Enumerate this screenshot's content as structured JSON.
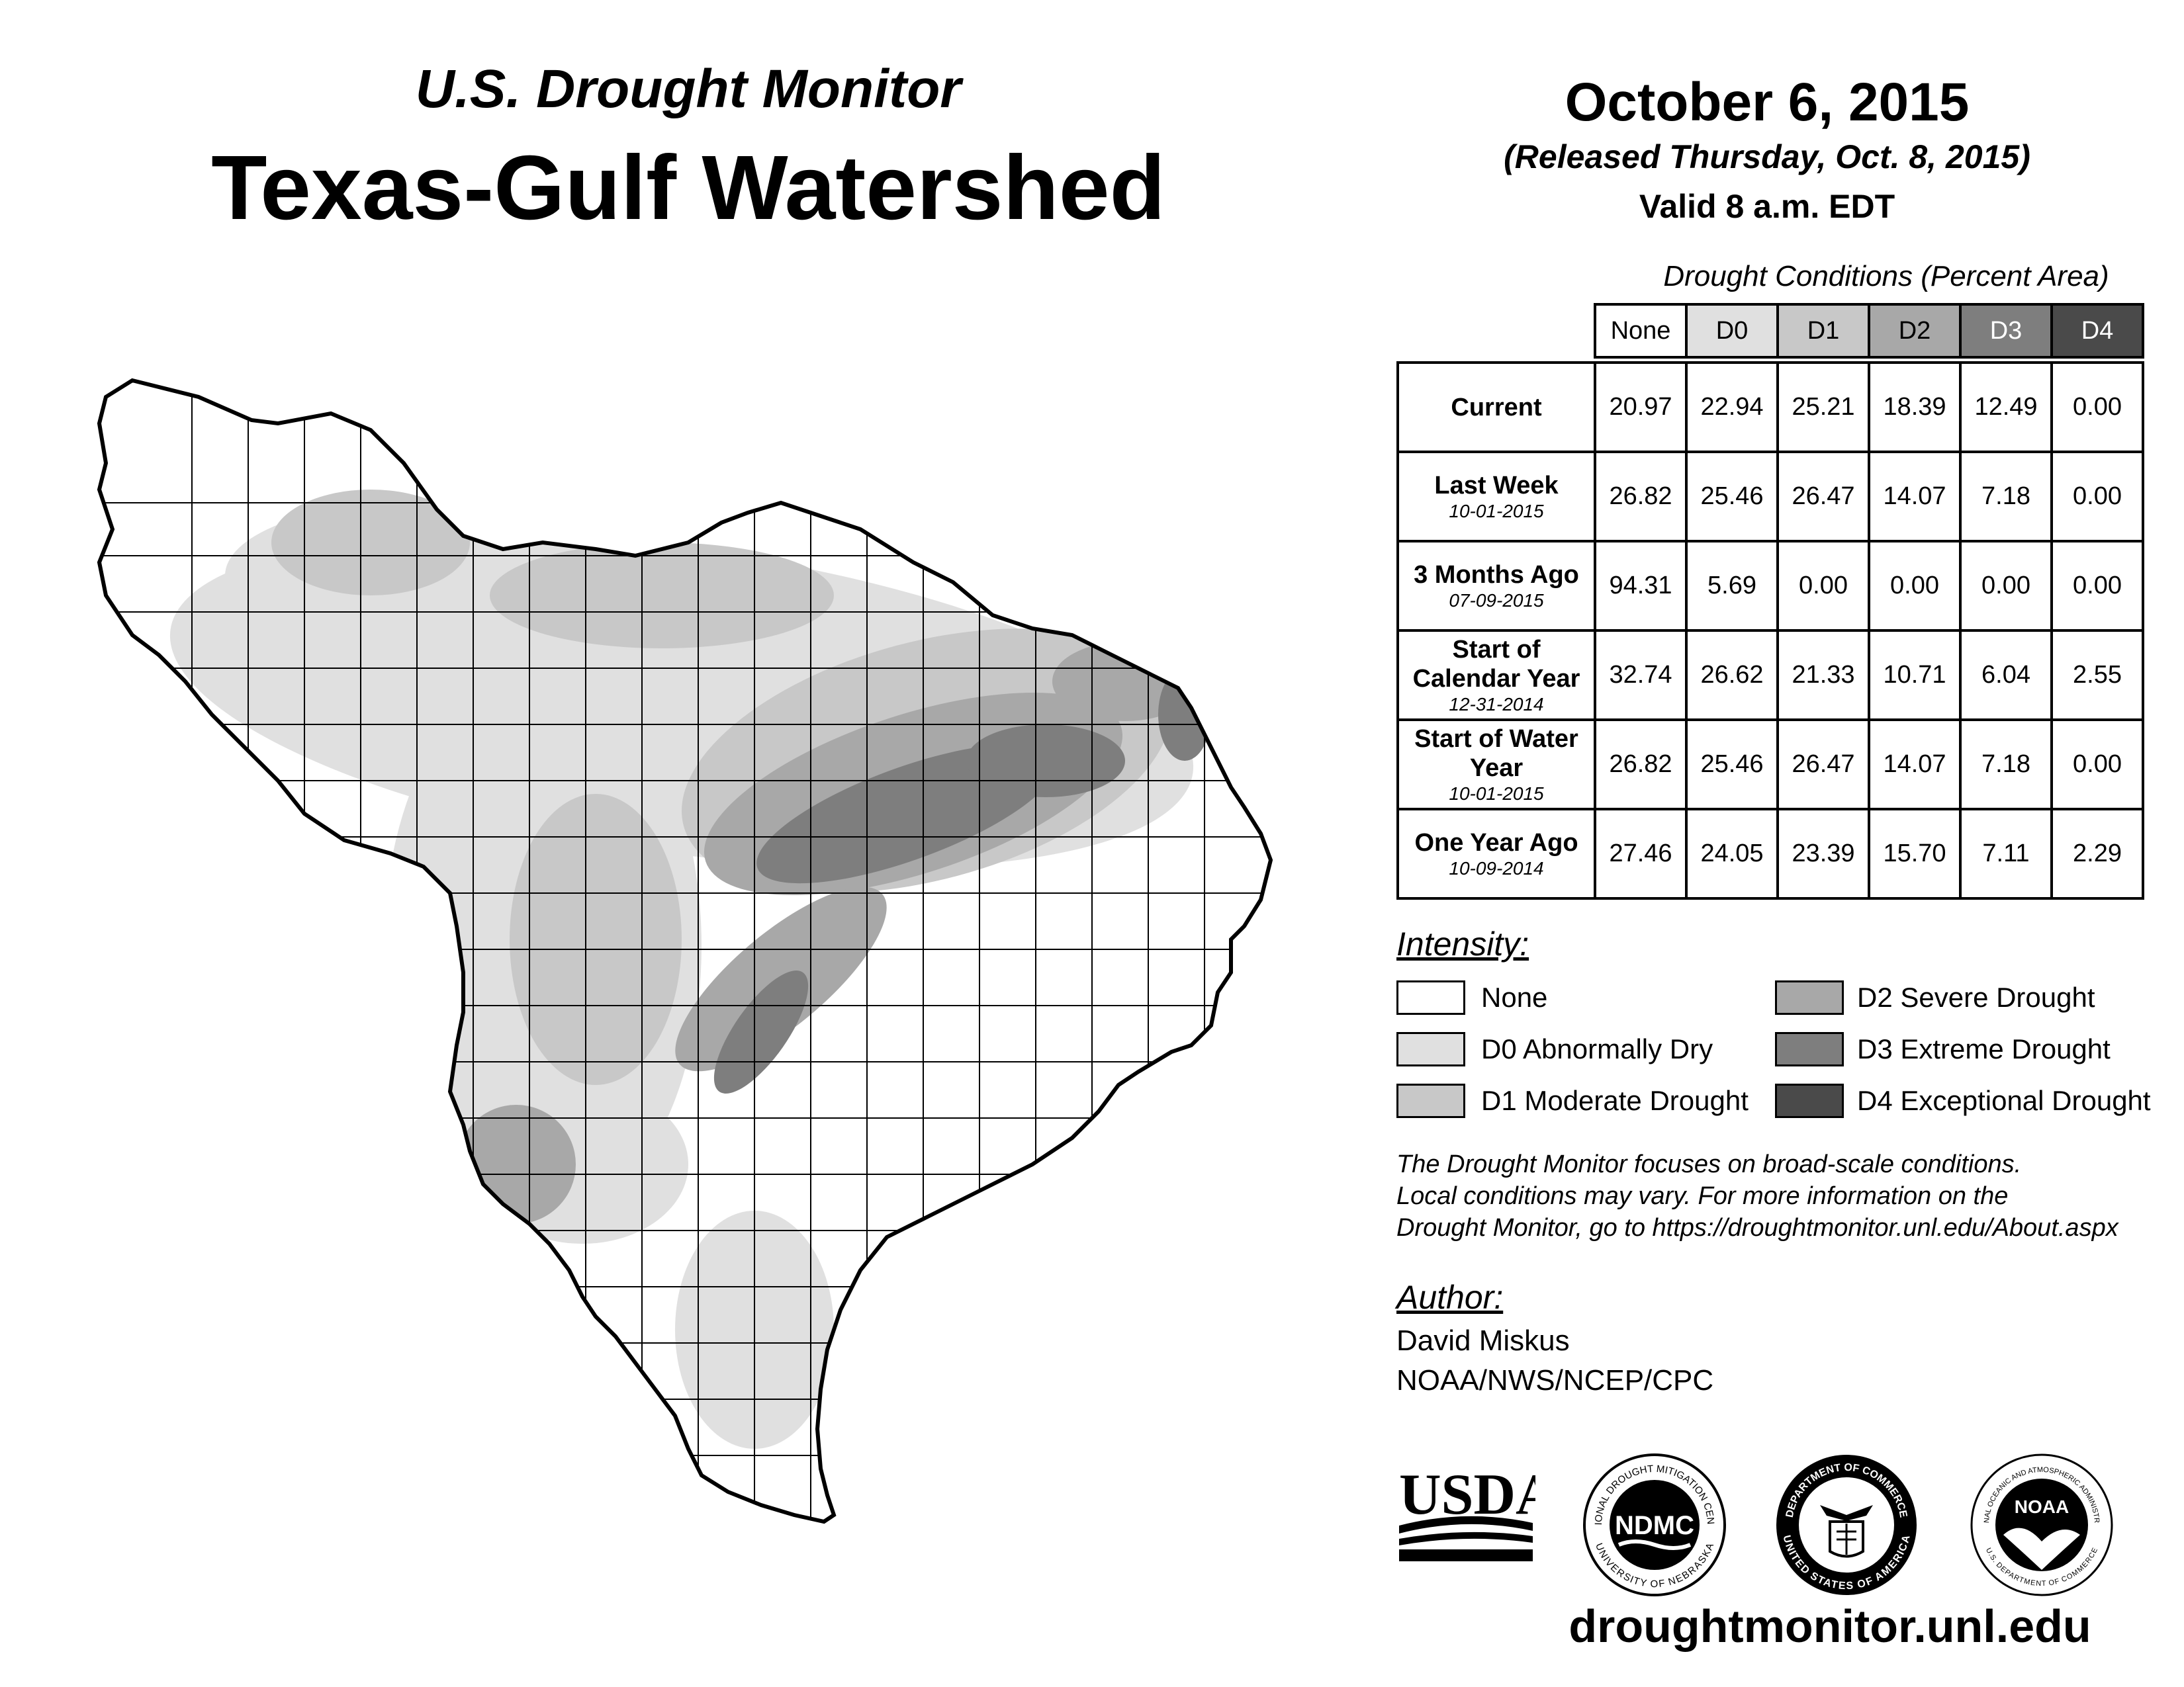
{
  "header": {
    "subtitle": "U.S. Drought Monitor",
    "title": "Texas-Gulf Watershed",
    "date": "October 6, 2015",
    "released": "(Released Thursday, Oct. 8, 2015)",
    "valid": "Valid 8 a.m. EDT"
  },
  "table": {
    "caption": "Drought Conditions (Percent Area)",
    "columns": [
      "None",
      "D0",
      "D1",
      "D2",
      "D3",
      "D4"
    ],
    "column_colors": [
      "#ffffff",
      "#e0e0e0",
      "#c8c8c8",
      "#a8a8a8",
      "#7e7e7e",
      "#4a4a4a"
    ],
    "rows": [
      {
        "label": "Current",
        "date": "",
        "values": [
          "20.97",
          "22.94",
          "25.21",
          "18.39",
          "12.49",
          "0.00"
        ]
      },
      {
        "label": "Last Week",
        "date": "10-01-2015",
        "values": [
          "26.82",
          "25.46",
          "26.47",
          "14.07",
          "7.18",
          "0.00"
        ]
      },
      {
        "label": "3 Months Ago",
        "date": "07-09-2015",
        "values": [
          "94.31",
          "5.69",
          "0.00",
          "0.00",
          "0.00",
          "0.00"
        ]
      },
      {
        "label": "Start of Calendar Year",
        "date": "12-31-2014",
        "values": [
          "32.74",
          "26.62",
          "21.33",
          "10.71",
          "6.04",
          "2.55"
        ]
      },
      {
        "label": "Start of Water Year",
        "date": "10-01-2015",
        "values": [
          "26.82",
          "25.46",
          "26.47",
          "14.07",
          "7.18",
          "0.00"
        ]
      },
      {
        "label": "One Year Ago",
        "date": "10-09-2014",
        "values": [
          "27.46",
          "24.05",
          "23.39",
          "15.70",
          "7.11",
          "2.29"
        ]
      }
    ]
  },
  "legend": {
    "title": "Intensity:",
    "items": [
      {
        "label": "None",
        "color": "#ffffff"
      },
      {
        "label": "D0 Abnormally Dry",
        "color": "#e0e0e0"
      },
      {
        "label": "D1 Moderate Drought",
        "color": "#c8c8c8"
      },
      {
        "label": "D2 Severe Drought",
        "color": "#a8a8a8"
      },
      {
        "label": "D3 Extreme Drought",
        "color": "#7e7e7e"
      },
      {
        "label": "D4 Exceptional Drought",
        "color": "#4a4a4a"
      }
    ]
  },
  "note": {
    "line1": "The Drought Monitor focuses on broad-scale conditions.",
    "line2": "Local conditions may vary. For more information on the",
    "line3": "Drought Monitor, go to https://droughtmonitor.unl.edu/About.aspx"
  },
  "author": {
    "title": "Author:",
    "name": "David Miskus",
    "org": "NOAA/NWS/NCEP/CPC"
  },
  "logos": {
    "usda": "USDA",
    "ndmc": "NDMC",
    "ndmc_ring_top": "NATIONAL DROUGHT MITIGATION CENTER",
    "ndmc_ring_bottom": "UNIVERSITY OF NEBRASKA",
    "doc_ring_top": "DEPARTMENT OF COMMERCE",
    "doc_ring_bottom": "UNITED STATES OF AMERICA",
    "noaa": "NOAA",
    "noaa_ring_top": "NATIONAL OCEANIC AND ATMOSPHERIC ADMINISTRATION",
    "noaa_ring_bottom": "U.S. DEPARTMENT OF COMMERCE"
  },
  "website": "droughtmonitor.unl.edu"
}
